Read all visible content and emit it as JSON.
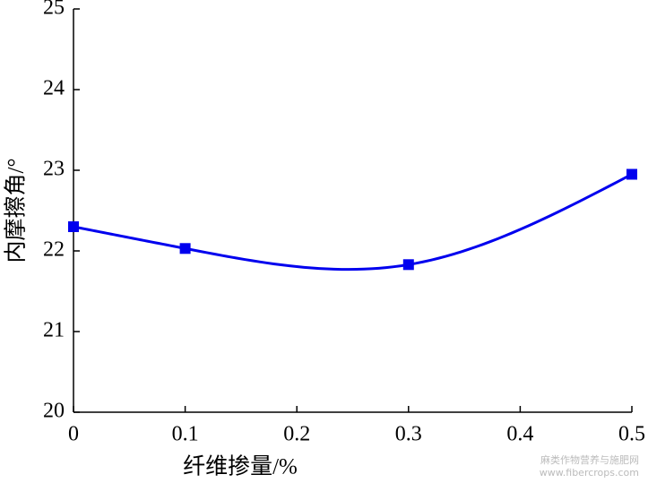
{
  "chart_data": {
    "type": "line",
    "x_label": "纤维掺量/%",
    "y_label": "内摩擦角/°",
    "x": [
      0,
      0.1,
      0.3,
      0.5
    ],
    "series": [
      {
        "color": "#0000ee",
        "values": [
          22.3,
          22.03,
          21.83,
          22.95
        ]
      }
    ],
    "xlim": [
      0,
      0.5
    ],
    "xticks": [
      0,
      0.1,
      0.2,
      0.3,
      0.4,
      0.5
    ],
    "ylim": [
      20,
      25
    ],
    "yticks": [
      20,
      21,
      22,
      23,
      24,
      25
    ],
    "smooth": true,
    "watermark": [
      "麻类作物营养与施肥网",
      "www.fibercrops.com"
    ]
  }
}
